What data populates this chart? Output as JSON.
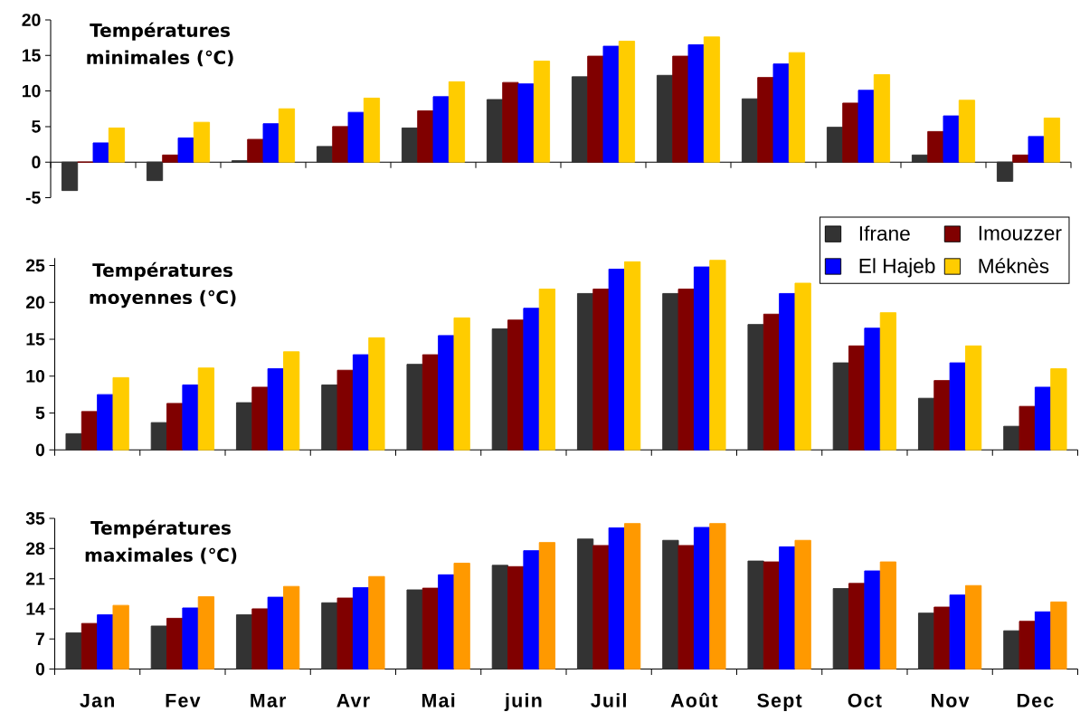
{
  "chart_data": [
    {
      "type": "bar",
      "title": "Températures minimales (℃)",
      "categories": [
        null,
        null,
        null,
        null,
        null,
        null,
        null,
        null,
        null,
        null,
        null,
        null
      ],
      "series": [
        {
          "color": "#333333",
          "values": [
            -4.0,
            -2.6,
            0.2,
            2.2,
            4.8,
            8.8,
            12.0,
            12.2,
            8.9,
            4.9,
            1.0,
            -2.7
          ]
        },
        {
          "color": "#800000",
          "values": [
            0,
            1.0,
            3.2,
            5.0,
            7.2,
            11.2,
            14.9,
            14.9,
            11.9,
            8.3,
            4.3,
            1.0
          ]
        },
        {
          "color": "#0000ff",
          "values": [
            2.7,
            3.4,
            5.4,
            7.0,
            9.2,
            11.0,
            16.3,
            16.5,
            13.8,
            10.1,
            6.5,
            3.6
          ]
        },
        {
          "color": "#ffcc00",
          "values": [
            4.8,
            5.6,
            7.5,
            9.0,
            11.3,
            14.2,
            17.0,
            17.6,
            15.4,
            12.3,
            8.7,
            6.2
          ]
        }
      ],
      "ylim": [
        -5,
        20
      ],
      "yticks": [
        -5,
        0,
        5,
        10,
        15,
        20
      ],
      "tick_labels": "y"
    },
    {
      "type": "bar",
      "title": "Températures moyennes (℃)",
      "categories": [
        null,
        null,
        null,
        null,
        null,
        null,
        null,
        null,
        null,
        null,
        null,
        null
      ],
      "series": [
        {
          "name": "Ifrane",
          "color": "#333333",
          "values": [
            2.2,
            3.7,
            6.4,
            8.8,
            11.6,
            16.4,
            21.2,
            21.2,
            17.0,
            11.8,
            7.0,
            3.2
          ]
        },
        {
          "name": "Imouzzer",
          "color": "#800000",
          "values": [
            5.2,
            6.3,
            8.5,
            10.8,
            12.9,
            17.6,
            21.8,
            21.8,
            18.4,
            14.1,
            9.4,
            5.9
          ]
        },
        {
          "name": "El Hajeb",
          "color": "#0000ff",
          "values": [
            7.5,
            8.8,
            11.0,
            12.9,
            15.5,
            19.2,
            24.5,
            24.8,
            21.2,
            16.5,
            11.8,
            8.5
          ]
        },
        {
          "name": "Méknès",
          "color": "#ffcc00",
          "values": [
            9.8,
            11.1,
            13.3,
            15.2,
            17.9,
            21.8,
            25.5,
            25.7,
            22.6,
            18.6,
            14.1,
            11.0
          ]
        }
      ],
      "ylim": [
        0,
        26
      ],
      "yticks": [
        0,
        5,
        10,
        15,
        20,
        25
      ],
      "tick_labels": "y",
      "legend": "top right"
    },
    {
      "type": "bar",
      "title": "Températures maximales (℃)",
      "categories": [
        "Jan",
        "Fev",
        "Mar",
        "Avr",
        "Mai",
        "juin",
        "Juil",
        "Août",
        "Sept",
        "Oct",
        "Nov",
        "Dec"
      ],
      "series": [
        {
          "color": "#333333",
          "values": [
            8.4,
            10.0,
            12.6,
            15.4,
            18.4,
            24.1,
            30.2,
            29.9,
            25.1,
            18.7,
            13.0,
            8.9
          ]
        },
        {
          "color": "#800000",
          "values": [
            10.6,
            11.8,
            14.0,
            16.5,
            18.8,
            23.8,
            28.7,
            28.7,
            24.9,
            19.9,
            14.4,
            11.1
          ]
        },
        {
          "color": "#0000ff",
          "values": [
            12.6,
            14.2,
            16.7,
            18.9,
            21.9,
            27.5,
            32.8,
            32.9,
            28.4,
            22.8,
            17.2,
            13.3
          ]
        },
        {
          "color": "#ff9900",
          "values": [
            14.8,
            16.8,
            19.2,
            21.5,
            24.6,
            29.4,
            33.8,
            33.8,
            29.9,
            24.9,
            19.4,
            15.6
          ]
        }
      ],
      "ylim": [
        0,
        35
      ],
      "yticks": [
        0,
        7,
        14,
        21,
        28,
        35
      ]
    }
  ]
}
